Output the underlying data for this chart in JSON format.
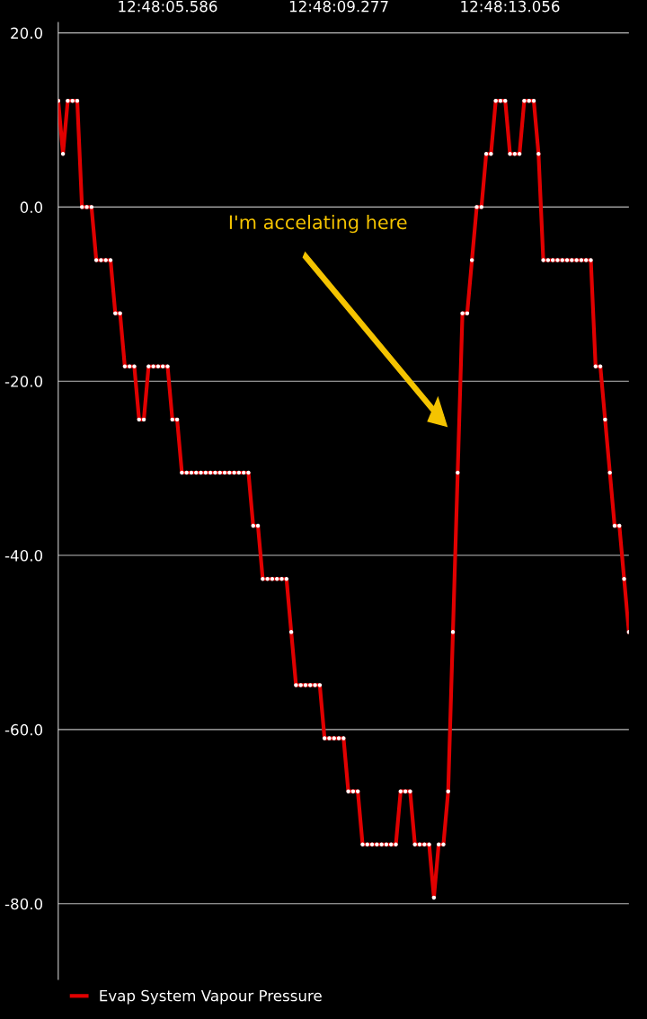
{
  "chart_data": {
    "type": "line",
    "annotations": [
      "I'm accelating here"
    ],
    "categories": [
      null,
      null,
      null,
      null,
      null,
      null,
      null,
      null,
      null,
      null,
      null,
      null,
      null,
      null,
      null,
      null,
      null,
      null,
      null,
      null,
      null,
      null,
      null,
      "12:48:05.586",
      null,
      null,
      null,
      null,
      null,
      null,
      null,
      null,
      null,
      null,
      null,
      null,
      null,
      null,
      null,
      null,
      null,
      null,
      null,
      null,
      null,
      null,
      null,
      null,
      null,
      null,
      null,
      null,
      null,
      null,
      null,
      null,
      null,
      null,
      null,
      "12:48:09.277",
      null,
      null,
      null,
      null,
      null,
      null,
      null,
      null,
      null,
      null,
      null,
      null,
      null,
      null,
      null,
      null,
      null,
      null,
      null,
      null,
      null,
      null,
      null,
      null,
      null,
      null,
      null,
      null,
      null,
      null,
      null,
      null,
      null,
      null,
      null,
      "12:48:13.056",
      null,
      null,
      null,
      null,
      null,
      null,
      null,
      null,
      null,
      null,
      null,
      null,
      null,
      null,
      null,
      null,
      null,
      null,
      null,
      null,
      null,
      null,
      null,
      null,
      null
    ],
    "ylim": [
      -88.7,
      21.2
    ],
    "yticks": [
      {
        "value": 20,
        "label": "20.0"
      },
      {
        "value": 0,
        "label": "0.0"
      },
      {
        "value": -20,
        "label": "-20.0"
      },
      {
        "value": -40,
        "label": "-40.0"
      },
      {
        "value": -60,
        "label": "-60.0"
      },
      {
        "value": -80,
        "label": "-80.0"
      }
    ],
    "grid": "y",
    "legend": "bottom",
    "marker": "circle",
    "line_style": "solid",
    "series": [
      {
        "name": "Evap System Vapour Pressure",
        "color": "#e00000",
        "values": [
          12.2,
          6.1,
          12.2,
          12.2,
          12.2,
          0,
          0,
          0,
          -6.1,
          -6.1,
          -6.1,
          -6.1,
          -12.2,
          -12.2,
          -18.3,
          -18.3,
          -18.3,
          -24.4,
          -24.4,
          -18.3,
          -18.3,
          -18.3,
          -18.3,
          -18.3,
          -24.4,
          -24.4,
          -30.5,
          -30.5,
          -30.5,
          -30.5,
          -30.5,
          -30.5,
          -30.5,
          -30.5,
          -30.5,
          -30.5,
          -30.5,
          -30.5,
          -30.5,
          -30.5,
          -30.5,
          -36.6,
          -36.6,
          -42.7,
          -42.7,
          -42.7,
          -42.7,
          -42.7,
          -42.7,
          -48.8,
          -54.9,
          -54.9,
          -54.9,
          -54.9,
          -54.9,
          -54.9,
          -61.0,
          -61.0,
          -61.0,
          -61.0,
          -61.0,
          -67.1,
          -67.1,
          -67.1,
          -73.2,
          -73.2,
          -73.2,
          -73.2,
          -73.2,
          -73.2,
          -73.2,
          -73.2,
          -67.1,
          -67.1,
          -67.1,
          -73.2,
          -73.2,
          -73.2,
          -73.2,
          -79.3,
          -73.2,
          -73.2,
          -67.1,
          -48.8,
          -30.5,
          -12.2,
          -12.2,
          -6.1,
          0,
          0,
          6.1,
          6.1,
          12.2,
          12.2,
          12.2,
          6.1,
          6.1,
          6.1,
          12.2,
          12.2,
          12.2,
          6.1,
          -6.1,
          -6.1,
          -6.1,
          -6.1,
          -6.1,
          -6.1,
          -6.1,
          -6.1,
          -6.1,
          -6.1,
          -6.1,
          -18.3,
          -18.3,
          -24.4,
          -30.5,
          -36.6,
          -36.6,
          -42.7,
          -48.8
        ]
      }
    ]
  }
}
